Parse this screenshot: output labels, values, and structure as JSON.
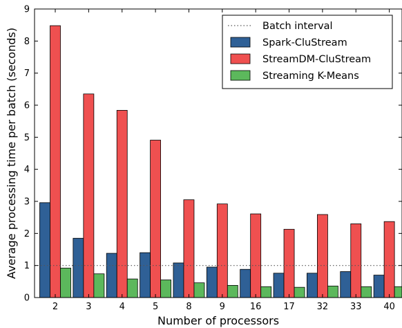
{
  "chart_data": {
    "type": "bar",
    "title": "",
    "xlabel": "Number of processors",
    "ylabel": "Average processing time per batch (seconds)",
    "categories": [
      "2",
      "3",
      "4",
      "5",
      "8",
      "9",
      "16",
      "17",
      "32",
      "33",
      "40"
    ],
    "ylim": [
      0,
      9
    ],
    "yticks": [
      "0",
      "1",
      "2",
      "3",
      "4",
      "5",
      "6",
      "7",
      "8",
      "9"
    ],
    "grid": false,
    "legend_position": "top-right",
    "reference_line": {
      "name": "Batch interval",
      "value": 1,
      "style": "dotted",
      "color": "#555555"
    },
    "series": [
      {
        "name": "Spark-CluStream",
        "color": "#2f6096",
        "values": [
          2.96,
          1.85,
          1.38,
          1.4,
          1.08,
          0.95,
          0.88,
          0.76,
          0.76,
          0.81,
          0.7
        ]
      },
      {
        "name": "StreamDM-CluStream",
        "color": "#ef5050",
        "values": [
          8.48,
          6.35,
          5.84,
          4.91,
          3.05,
          2.92,
          2.61,
          2.13,
          2.59,
          2.3,
          2.37
        ]
      },
      {
        "name": "Streaming K-Means",
        "color": "#5cb85c",
        "values": [
          0.92,
          0.74,
          0.58,
          0.55,
          0.46,
          0.38,
          0.34,
          0.32,
          0.36,
          0.34,
          0.34
        ]
      }
    ]
  }
}
